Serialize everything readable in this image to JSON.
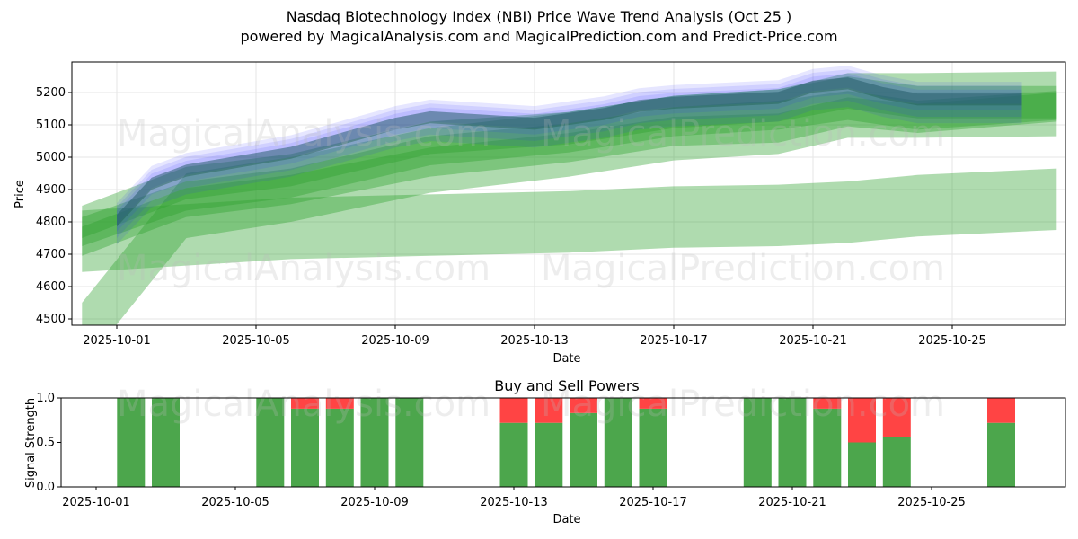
{
  "title_line1": "Nasdaq Biotechnology Index (NBI) Price Wave Trend Analysis (Oct 25 )",
  "title_line2": "powered by MagicalAnalysis.com and MagicalPrediction.com and Predict-Price.com",
  "watermarks": [
    "MagicalAnalysis.com",
    "MagicalPrediction.com"
  ],
  "colors": {
    "blue_wave": "#3333ff",
    "green_wave": "#2ca02c",
    "buy": "#4ca64c",
    "sell": "#ff4444",
    "grid": "#e6e6e6"
  },
  "chart_data": [
    {
      "type": "area",
      "name": "price-wave",
      "xlabel": "Date",
      "ylabel": "Price",
      "ylim": [
        4475,
        5290
      ],
      "xlim": [
        "2025-09-30",
        "2025-10-28"
      ],
      "yticks": [
        4500,
        4600,
        4700,
        4800,
        4900,
        5000,
        5100,
        5200
      ],
      "xticks": [
        "2025-10-01",
        "2025-10-05",
        "2025-10-09",
        "2025-10-13",
        "2025-10-17",
        "2025-10-21",
        "2025-10-25"
      ],
      "grid": true,
      "blue_series": {
        "x": [
          "2025-10-01",
          "2025-10-02",
          "2025-10-03",
          "2025-10-06",
          "2025-10-07",
          "2025-10-08",
          "2025-10-09",
          "2025-10-10",
          "2025-10-13",
          "2025-10-14",
          "2025-10-15",
          "2025-10-16",
          "2025-10-17",
          "2025-10-20",
          "2025-10-21",
          "2025-10-22",
          "2025-10-23",
          "2025-10-24",
          "2025-10-27"
        ],
        "center": [
          4810,
          4925,
          4965,
          5020,
          5050,
          5080,
          5110,
          5130,
          5110,
          5125,
          5140,
          5165,
          5175,
          5190,
          5225,
          5235,
          5205,
          5185,
          5185
        ],
        "spreads": [
          20,
          40,
          60,
          80
        ]
      },
      "green_bands": [
        {
          "x": [
            "2025-09-30",
            "2025-10-03",
            "2025-10-06",
            "2025-10-10",
            "2025-10-14",
            "2025-10-17",
            "2025-10-20",
            "2025-10-22",
            "2025-10-24",
            "2025-10-28"
          ],
          "center": [
            4800,
            4920,
            4960,
            5060,
            5090,
            5140,
            5160,
            5200,
            5170,
            5170
          ],
          "halfwidth": 50
        },
        {
          "x": [
            "2025-09-30",
            "2025-10-03",
            "2025-10-06",
            "2025-10-10",
            "2025-10-14",
            "2025-10-17",
            "2025-10-20",
            "2025-10-22",
            "2025-10-24",
            "2025-10-28"
          ],
          "center": [
            4770,
            4880,
            4920,
            5020,
            5060,
            5110,
            5130,
            5160,
            5130,
            5160
          ],
          "halfwidth": 45
        },
        {
          "x": [
            "2025-09-30",
            "2025-10-03",
            "2025-10-06",
            "2025-10-10",
            "2025-10-14",
            "2025-10-17",
            "2025-10-20",
            "2025-10-22",
            "2025-10-24",
            "2025-10-28"
          ],
          "center": [
            4740,
            4860,
            4900,
            4985,
            5030,
            5080,
            5090,
            5140,
            5120,
            5155
          ],
          "halfwidth": 45
        },
        {
          "x": [
            "2025-09-30",
            "2025-10-03",
            "2025-10-06",
            "2025-10-10",
            "2025-10-14",
            "2025-10-17",
            "2025-10-20",
            "2025-10-22",
            "2025-10-24",
            "2025-10-28"
          ],
          "center": [
            4450,
            4850,
            4900,
            4990,
            5040,
            5090,
            5110,
            5160,
            5160,
            5165
          ],
          "halfwidth": 100
        },
        {
          "x": [
            "2025-09-30",
            "2025-10-03",
            "2025-10-06",
            "2025-10-10",
            "2025-10-14",
            "2025-10-17",
            "2025-10-20",
            "2025-10-22",
            "2025-10-24",
            "2025-10-28"
          ],
          "center": [
            4740,
            4760,
            4780,
            4790,
            4800,
            4815,
            4820,
            4830,
            4850,
            4870
          ],
          "halfwidth": 95
        }
      ]
    },
    {
      "type": "bar",
      "name": "buy-sell-powers",
      "title": "Buy and Sell Powers",
      "xlabel": "Date",
      "ylabel": "Signal Strength",
      "ylim": [
        0,
        1.0
      ],
      "yticks": [
        0.0,
        0.5,
        1.0
      ],
      "xticks": [
        "2025-10-01",
        "2025-10-05",
        "2025-10-09",
        "2025-10-13",
        "2025-10-17",
        "2025-10-21",
        "2025-10-25"
      ],
      "xlim": [
        "2025-09-30",
        "2025-10-28"
      ],
      "dates": [
        "2025-10-02",
        "2025-10-03",
        "2025-10-06",
        "2025-10-07",
        "2025-10-08",
        "2025-10-09",
        "2025-10-10",
        "2025-10-13",
        "2025-10-14",
        "2025-10-15",
        "2025-10-16",
        "2025-10-17",
        "2025-10-20",
        "2025-10-21",
        "2025-10-22",
        "2025-10-23",
        "2025-10-24",
        "2025-10-27"
      ],
      "buy": [
        1.0,
        1.0,
        1.0,
        0.88,
        0.88,
        1.0,
        1.0,
        0.72,
        0.72,
        0.83,
        1.0,
        0.88,
        1.0,
        1.0,
        0.88,
        0.5,
        0.56,
        0.72
      ],
      "sell": [
        0.0,
        0.0,
        0.0,
        0.12,
        0.12,
        0.0,
        0.0,
        0.28,
        0.28,
        0.17,
        0.0,
        0.12,
        0.0,
        0.0,
        0.12,
        0.5,
        0.44,
        0.28
      ]
    }
  ]
}
